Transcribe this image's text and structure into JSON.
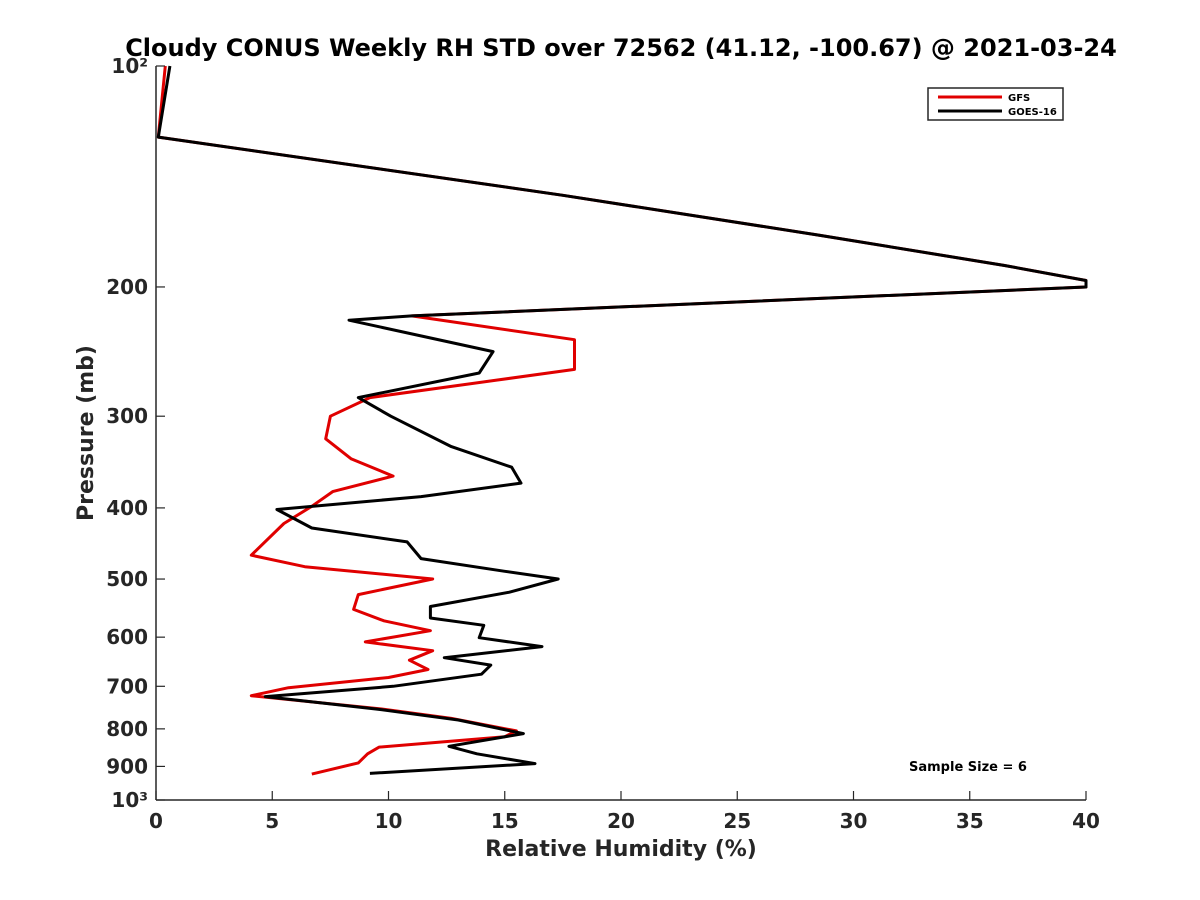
{
  "chart_data": {
    "type": "line",
    "title": "Cloudy CONUS Weekly RH STD over 72562 (41.12, -100.67) @ 2021-03-24",
    "xlabel": "Relative Humidity (%)",
    "ylabel": "Pressure (mb)",
    "xlim": [
      0,
      40
    ],
    "ylim": [
      100,
      1000
    ],
    "y_scale": "log",
    "y_reversed": true,
    "x_ticks": [
      0,
      5,
      10,
      15,
      20,
      25,
      30,
      35,
      40
    ],
    "x_tick_labels": [
      "0",
      "5",
      "10",
      "15",
      "20",
      "25",
      "30",
      "35",
      "40"
    ],
    "y_ticks": [
      100,
      200,
      300,
      400,
      500,
      600,
      700,
      800,
      900,
      1000
    ],
    "y_tick_labels": [
      "10²",
      "200",
      "300",
      "400",
      "500",
      "600",
      "700",
      "800",
      "900",
      "10³"
    ],
    "legend_position": "top-right",
    "annotation": "Sample Size = 6",
    "series": [
      {
        "name": "GFS",
        "color": "#e00000",
        "points": [
          [
            0.4,
            100
          ],
          [
            0.1,
            125
          ],
          [
            17.5,
            150
          ],
          [
            28.5,
            170
          ],
          [
            36.5,
            187
          ],
          [
            40,
            196
          ],
          [
            40,
            200
          ],
          [
            11.0,
            219
          ],
          [
            18.0,
            236
          ],
          [
            18.0,
            259
          ],
          [
            9.2,
            283
          ],
          [
            7.5,
            300
          ],
          [
            7.3,
            322
          ],
          [
            8.4,
            343
          ],
          [
            10.2,
            362
          ],
          [
            7.6,
            380
          ],
          [
            6.7,
            398
          ],
          [
            5.5,
            420
          ],
          [
            4.1,
            464
          ],
          [
            6.4,
            481
          ],
          [
            11.9,
            500
          ],
          [
            8.7,
            525
          ],
          [
            8.5,
            550
          ],
          [
            9.8,
            570
          ],
          [
            11.8,
            588
          ],
          [
            9.0,
            609
          ],
          [
            11.9,
            626
          ],
          [
            10.9,
            645
          ],
          [
            11.7,
            664
          ],
          [
            10.0,
            681
          ],
          [
            5.7,
            703
          ],
          [
            4.1,
            721
          ],
          [
            9.6,
            751
          ],
          [
            12.7,
            774
          ],
          [
            15.5,
            805
          ],
          [
            15.0,
            820
          ],
          [
            9.6,
            847
          ],
          [
            9.1,
            865
          ],
          [
            8.7,
            890
          ],
          [
            6.7,
            922
          ]
        ]
      },
      {
        "name": "GOES-16",
        "color": "#000000",
        "points": [
          [
            0.6,
            100
          ],
          [
            0.1,
            125
          ],
          [
            17.5,
            150
          ],
          [
            28.5,
            170
          ],
          [
            36.5,
            187
          ],
          [
            40,
            196
          ],
          [
            40,
            200
          ],
          [
            11.0,
            219
          ],
          [
            8.3,
            222
          ],
          [
            14.5,
            245
          ],
          [
            13.9,
            262
          ],
          [
            8.7,
            283
          ],
          [
            10.1,
            300
          ],
          [
            12.7,
            330
          ],
          [
            15.3,
            352
          ],
          [
            15.7,
            370
          ],
          [
            11.4,
            386
          ],
          [
            5.2,
            402
          ],
          [
            6.7,
            426
          ],
          [
            10.8,
            445
          ],
          [
            11.4,
            469
          ],
          [
            15.0,
            488
          ],
          [
            17.3,
            500
          ],
          [
            15.2,
            521
          ],
          [
            11.8,
            545
          ],
          [
            11.8,
            565
          ],
          [
            14.1,
            578
          ],
          [
            13.9,
            601
          ],
          [
            16.6,
            618
          ],
          [
            12.4,
            640
          ],
          [
            14.4,
            655
          ],
          [
            14.0,
            674
          ],
          [
            10.2,
            700
          ],
          [
            4.7,
            723
          ],
          [
            9.5,
            752
          ],
          [
            13.0,
            778
          ],
          [
            15.8,
            812
          ],
          [
            12.6,
            845
          ],
          [
            13.8,
            865
          ],
          [
            16.3,
            892
          ],
          [
            9.2,
            920
          ]
        ]
      }
    ]
  }
}
